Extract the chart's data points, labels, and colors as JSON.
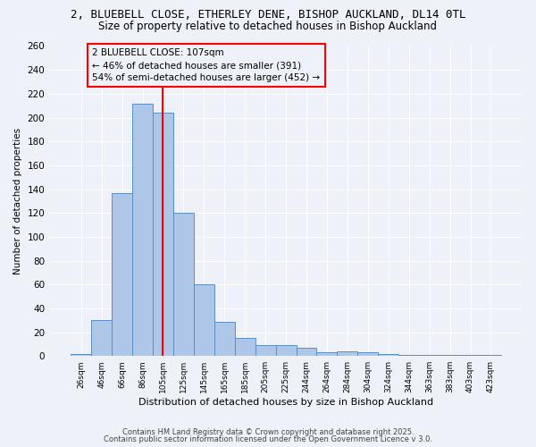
{
  "title1": "2, BLUEBELL CLOSE, ETHERLEY DENE, BISHOP AUCKLAND, DL14 0TL",
  "title2": "Size of property relative to detached houses in Bishop Auckland",
  "xlabel": "Distribution of detached houses by size in Bishop Auckland",
  "ylabel": "Number of detached properties",
  "categories": [
    "26sqm",
    "46sqm",
    "66sqm",
    "86sqm",
    "105sqm",
    "125sqm",
    "145sqm",
    "165sqm",
    "185sqm",
    "205sqm",
    "225sqm",
    "244sqm",
    "264sqm",
    "284sqm",
    "304sqm",
    "324sqm",
    "344sqm",
    "363sqm",
    "383sqm",
    "403sqm",
    "423sqm"
  ],
  "values": [
    2,
    30,
    137,
    212,
    204,
    120,
    60,
    29,
    15,
    9,
    9,
    7,
    3,
    4,
    3,
    2,
    1,
    1,
    1,
    1,
    1
  ],
  "bar_color": "#aec6e8",
  "bar_edge_color": "#5a8fc2",
  "vline_x": 4,
  "vline_color": "red",
  "annotation_title": "2 BLUEBELL CLOSE: 107sqm",
  "annotation_line1": "← 46% of detached houses are smaller (391)",
  "annotation_line2": "54% of semi-detached houses are larger (452) →",
  "annotation_box_color": "red",
  "footnote1": "Contains HM Land Registry data © Crown copyright and database right 2025.",
  "footnote2": "Contains public sector information licensed under the Open Government Licence v 3.0.",
  "ylim": [
    0,
    260
  ],
  "yticks": [
    0,
    20,
    40,
    60,
    80,
    100,
    120,
    140,
    160,
    180,
    200,
    220,
    240,
    260
  ],
  "background_color": "#eef2f8",
  "grid_color": "#ffffff",
  "title_fontsize": 9,
  "subtitle_fontsize": 8.5
}
